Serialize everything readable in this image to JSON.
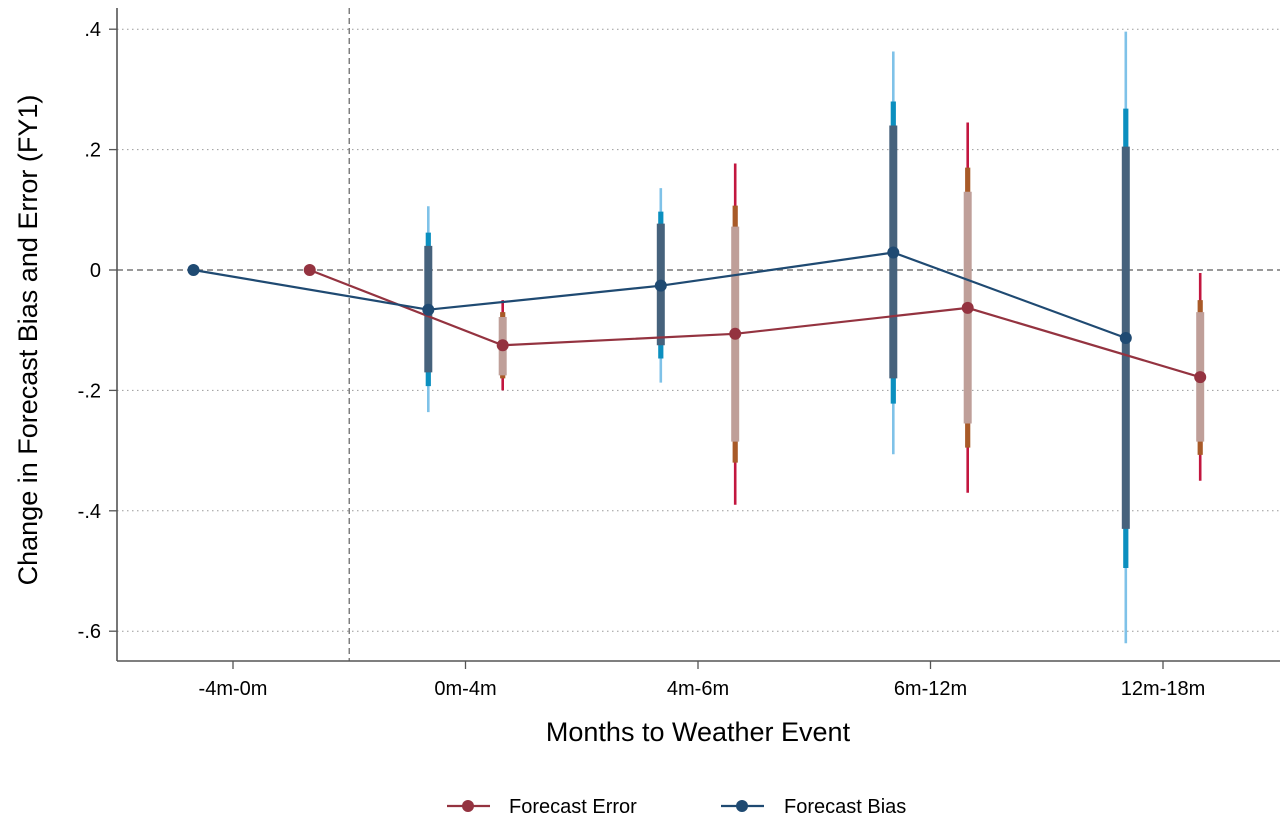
{
  "chart_data": {
    "type": "line",
    "title": "",
    "xlabel": "Months to Weather Event",
    "ylabel": "Change in Forecast Bias and Error (FY1)",
    "categories": [
      "-4m-0m",
      "0m-4m",
      "4m-6m",
      "6m-12m",
      "12m-18m"
    ],
    "ylim": [
      -0.645,
      0.43
    ],
    "yticks": [
      0.4,
      0.2,
      0,
      -0.2,
      -0.4,
      -0.6
    ],
    "ytick_labels": [
      ".4",
      ".2",
      "0",
      "-.2",
      "-.4",
      "-.6"
    ],
    "grid": true,
    "reference_lines": {
      "y": 0,
      "x_between_categories": [
        "-4m-0m",
        "0m-4m"
      ]
    },
    "legend_position": "bottom",
    "series": [
      {
        "name": "Forecast Error",
        "color": "#943340",
        "offset": 0.16,
        "values": [
          0,
          -0.125,
          -0.106,
          -0.063,
          -0.178
        ],
        "ci90": [
          null,
          [
            -0.175,
            -0.078
          ],
          [
            -0.285,
            0.072
          ],
          [
            -0.255,
            0.13
          ],
          [
            -0.285,
            -0.07
          ]
        ],
        "ci95": [
          null,
          [
            -0.18,
            -0.07
          ],
          [
            -0.32,
            0.107
          ],
          [
            -0.295,
            0.17
          ],
          [
            -0.307,
            -0.05
          ]
        ],
        "ci99": [
          null,
          [
            -0.2,
            -0.05
          ],
          [
            -0.39,
            0.177
          ],
          [
            -0.37,
            0.245
          ],
          [
            -0.35,
            -0.005
          ]
        ],
        "ci_colors": [
          "#bf9f99",
          "#a85a28",
          "#c2163f"
        ]
      },
      {
        "name": "Forecast Bias",
        "color": "#1f4a72",
        "offset": -0.16,
        "values": [
          0,
          -0.066,
          -0.026,
          0.029,
          -0.113
        ],
        "ci90": [
          null,
          [
            -0.17,
            0.04
          ],
          [
            -0.125,
            0.077
          ],
          [
            -0.18,
            0.24
          ],
          [
            -0.43,
            0.205
          ]
        ],
        "ci95": [
          null,
          [
            -0.193,
            0.062
          ],
          [
            -0.147,
            0.097
          ],
          [
            -0.222,
            0.28
          ],
          [
            -0.495,
            0.268
          ]
        ],
        "ci99": [
          null,
          [
            -0.236,
            0.106
          ],
          [
            -0.187,
            0.136
          ],
          [
            -0.306,
            0.363
          ],
          [
            -0.62,
            0.396
          ]
        ],
        "ci_colors": [
          "#46627c",
          "#0b8fbf",
          "#7fc2e8"
        ]
      }
    ]
  }
}
